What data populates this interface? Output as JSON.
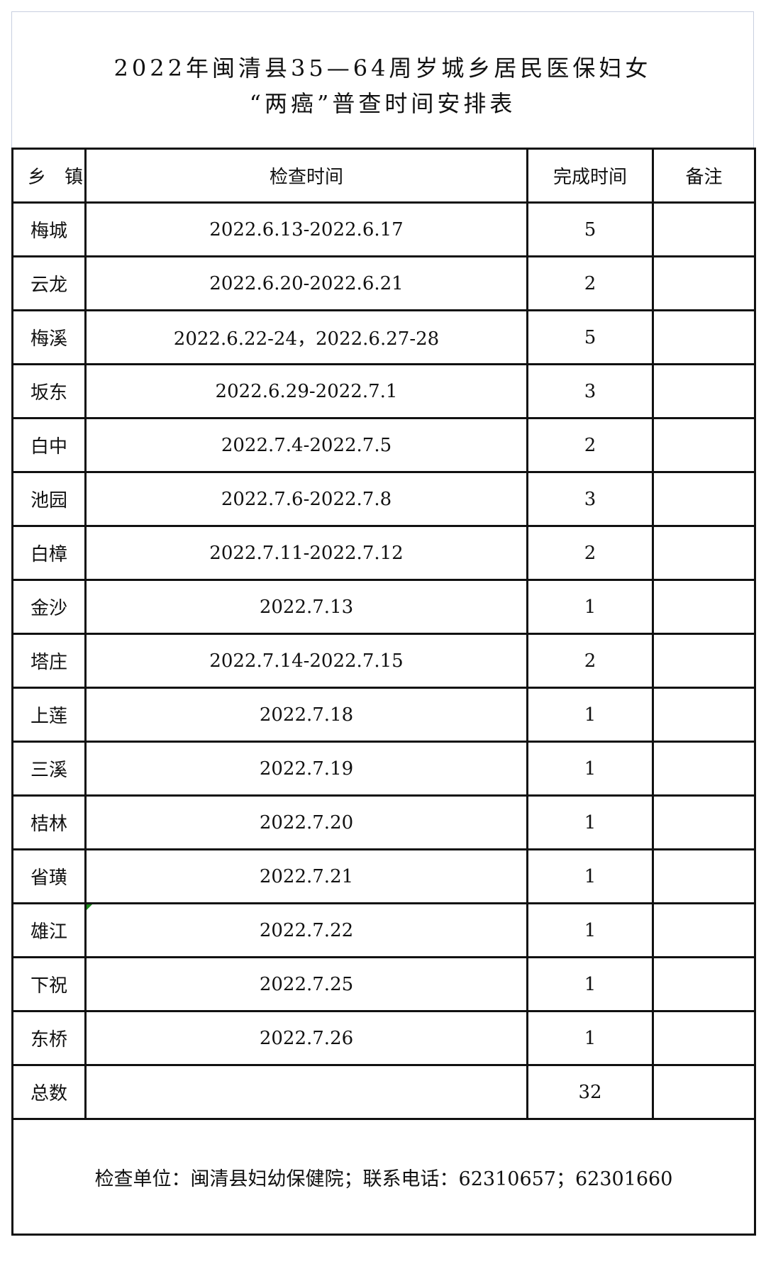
{
  "title": {
    "line1": "2022年闽清县35—64周岁城乡居民医保妇女",
    "line2": "“两癌”普查时间安排表"
  },
  "columns": [
    "乡　镇",
    "检查时间",
    "完成时间",
    "备注"
  ],
  "rows": [
    {
      "town": "梅城",
      "date": "2022.6.13-2022.6.17",
      "days": "5",
      "note": ""
    },
    {
      "town": "云龙",
      "date": "2022.6.20-2022.6.21",
      "days": "2",
      "note": ""
    },
    {
      "town": "梅溪",
      "date": "2022.6.22-24，2022.6.27-28",
      "days": "5",
      "note": ""
    },
    {
      "town": "坂东",
      "date": "2022.6.29-2022.7.1",
      "days": "3",
      "note": ""
    },
    {
      "town": "白中",
      "date": "2022.7.4-2022.7.5",
      "days": "2",
      "note": ""
    },
    {
      "town": "池园",
      "date": "2022.7.6-2022.7.8",
      "days": "3",
      "note": ""
    },
    {
      "town": "白樟",
      "date": "2022.7.11-2022.7.12",
      "days": "2",
      "note": ""
    },
    {
      "town": "金沙",
      "date": "2022.7.13",
      "days": "1",
      "note": ""
    },
    {
      "town": "塔庄",
      "date": "2022.7.14-2022.7.15",
      "days": "2",
      "note": ""
    },
    {
      "town": "上莲",
      "date": "2022.7.18",
      "days": "1",
      "note": ""
    },
    {
      "town": "三溪",
      "date": "2022.7.19",
      "days": "1",
      "note": ""
    },
    {
      "town": "桔林",
      "date": "2022.7.20",
      "days": "1",
      "note": ""
    },
    {
      "town": "省璜",
      "date": "2022.7.21",
      "days": "1",
      "note": ""
    },
    {
      "town": "雄江",
      "date": "2022.7.22",
      "days": "1",
      "note": ""
    },
    {
      "town": "下祝",
      "date": "2022.7.25",
      "days": "1",
      "note": ""
    },
    {
      "town": "东桥",
      "date": "2022.7.26",
      "days": "1",
      "note": ""
    }
  ],
  "total": {
    "label": "总数",
    "date": "",
    "days": "32",
    "note": ""
  },
  "footer": "检查单位：闽清县妇幼保健院；联系电话：62310657；62301660"
}
